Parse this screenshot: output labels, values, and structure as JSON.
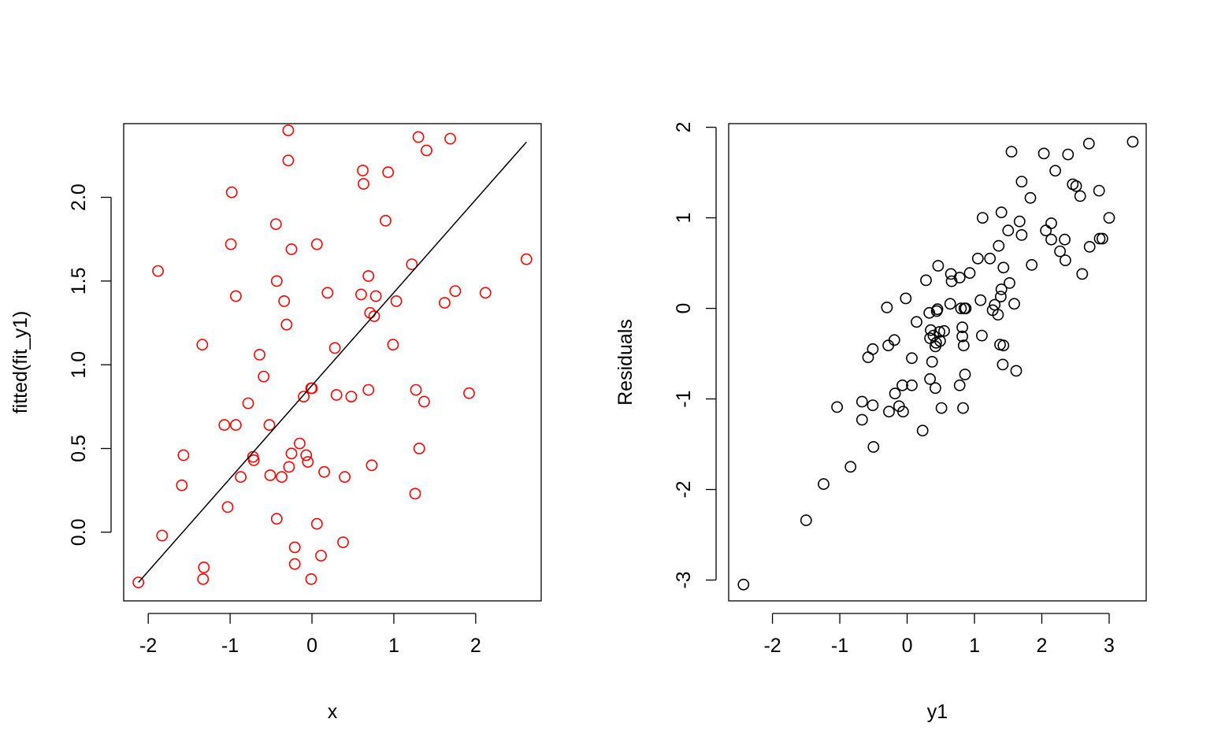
{
  "chart_data": [
    {
      "type": "scatter",
      "xlabel": "x",
      "ylabel": "fitted(fit_y1)",
      "xlim": [
        -2.3,
        2.8
      ],
      "ylim": [
        -0.41,
        2.44
      ],
      "x_ticks": [
        "-2",
        "-1",
        "0",
        "1",
        "2"
      ],
      "y_ticks": [
        "0.0",
        "0.5",
        "1.0",
        "1.5",
        "2.0"
      ],
      "point_color": "#FF0000",
      "line_color": "#000000",
      "fit_line": {
        "x": [
          -2.12,
          2.62
        ],
        "y": [
          -0.3,
          2.33
        ]
      },
      "points": [
        [
          -2.12,
          -0.3
        ],
        [
          -1.83,
          -0.02
        ],
        [
          -1.32,
          -0.21
        ],
        [
          -1.33,
          -0.28
        ],
        [
          -1.88,
          1.56
        ],
        [
          -1.34,
          1.12
        ],
        [
          -1.57,
          0.46
        ],
        [
          -1.59,
          0.28
        ],
        [
          -1.07,
          0.64
        ],
        [
          -1.03,
          0.15
        ],
        [
          -0.98,
          2.03
        ],
        [
          -0.99,
          1.72
        ],
        [
          -0.93,
          1.41
        ],
        [
          -0.93,
          0.64
        ],
        [
          -0.87,
          0.33
        ],
        [
          -0.78,
          0.77
        ],
        [
          -0.72,
          0.45
        ],
        [
          -0.71,
          0.43
        ],
        [
          -0.64,
          1.06
        ],
        [
          -0.59,
          0.93
        ],
        [
          -0.52,
          0.64
        ],
        [
          -0.51,
          0.34
        ],
        [
          -0.44,
          1.84
        ],
        [
          -0.43,
          1.5
        ],
        [
          -0.43,
          0.08
        ],
        [
          -0.37,
          0.33
        ],
        [
          -0.34,
          1.38
        ],
        [
          -0.31,
          1.24
        ],
        [
          -0.29,
          2.4
        ],
        [
          -0.29,
          2.22
        ],
        [
          -0.28,
          0.39
        ],
        [
          -0.25,
          1.69
        ],
        [
          -0.25,
          0.47
        ],
        [
          -0.21,
          -0.09
        ],
        [
          -0.21,
          -0.19
        ],
        [
          -0.15,
          0.53
        ],
        [
          -0.1,
          0.81
        ],
        [
          -0.07,
          0.46
        ],
        [
          -0.05,
          0.42
        ],
        [
          -0.01,
          0.86
        ],
        [
          0.0,
          0.86
        ],
        [
          -0.01,
          -0.28
        ],
        [
          0.06,
          1.72
        ],
        [
          0.06,
          0.05
        ],
        [
          0.11,
          -0.14
        ],
        [
          0.15,
          0.36
        ],
        [
          0.19,
          1.43
        ],
        [
          0.28,
          1.1
        ],
        [
          0.3,
          0.82
        ],
        [
          0.38,
          -0.06
        ],
        [
          0.4,
          0.33
        ],
        [
          0.48,
          0.81
        ],
        [
          0.6,
          1.42
        ],
        [
          0.62,
          2.16
        ],
        [
          0.63,
          2.08
        ],
        [
          0.69,
          0.85
        ],
        [
          0.69,
          1.53
        ],
        [
          0.71,
          1.31
        ],
        [
          0.73,
          0.4
        ],
        [
          0.76,
          1.29
        ],
        [
          0.78,
          1.41
        ],
        [
          0.9,
          1.86
        ],
        [
          0.93,
          2.15
        ],
        [
          0.99,
          1.12
        ],
        [
          1.03,
          1.38
        ],
        [
          1.22,
          1.6
        ],
        [
          1.26,
          0.23
        ],
        [
          1.27,
          0.85
        ],
        [
          1.3,
          2.36
        ],
        [
          1.31,
          0.5
        ],
        [
          1.37,
          0.78
        ],
        [
          1.4,
          2.28
        ],
        [
          1.62,
          1.37
        ],
        [
          1.69,
          2.35
        ],
        [
          1.75,
          1.44
        ],
        [
          1.92,
          0.83
        ],
        [
          2.12,
          1.43
        ],
        [
          2.62,
          1.63
        ]
      ]
    },
    {
      "type": "scatter",
      "xlabel": "y1",
      "ylabel": "Residuals",
      "xlim": [
        -2.65,
        3.55
      ],
      "ylim": [
        -3.23,
        2.04
      ],
      "x_ticks": [
        "-2",
        "-1",
        "0",
        "1",
        "2",
        "3"
      ],
      "y_ticks": [
        "-3",
        "-2",
        "-1",
        "0",
        "1",
        "2"
      ],
      "point_color": "#000000",
      "points": [
        [
          -2.43,
          -3.05
        ],
        [
          -1.5,
          -2.34
        ],
        [
          -1.24,
          -1.94
        ],
        [
          -0.84,
          -1.75
        ],
        [
          -1.04,
          -1.09
        ],
        [
          -0.67,
          -1.03
        ],
        [
          -0.67,
          -1.23
        ],
        [
          -0.51,
          -1.07
        ],
        [
          -0.5,
          -1.53
        ],
        [
          -0.58,
          -0.54
        ],
        [
          -0.51,
          -0.45
        ],
        [
          -0.3,
          0.01
        ],
        [
          -0.28,
          -0.41
        ],
        [
          -0.27,
          -1.14
        ],
        [
          -0.19,
          -0.35
        ],
        [
          -0.18,
          -0.94
        ],
        [
          -0.12,
          -1.08
        ],
        [
          -0.07,
          -0.85
        ],
        [
          -0.06,
          -1.14
        ],
        [
          -0.02,
          0.11
        ],
        [
          0.07,
          -0.55
        ],
        [
          0.07,
          -0.85
        ],
        [
          0.14,
          -0.15
        ],
        [
          0.23,
          -1.35
        ],
        [
          0.28,
          0.31
        ],
        [
          0.33,
          -0.05
        ],
        [
          0.34,
          -0.78
        ],
        [
          0.35,
          -0.24
        ],
        [
          0.34,
          -0.33
        ],
        [
          0.37,
          -0.59
        ],
        [
          0.39,
          -0.3
        ],
        [
          0.42,
          -0.88
        ],
        [
          0.42,
          -0.42
        ],
        [
          0.43,
          -0.38
        ],
        [
          0.44,
          -0.03
        ],
        [
          0.45,
          -0.01
        ],
        [
          0.46,
          0.47
        ],
        [
          0.48,
          -0.26
        ],
        [
          0.49,
          -0.36
        ],
        [
          0.51,
          -1.1
        ],
        [
          0.55,
          -0.25
        ],
        [
          0.64,
          0.05
        ],
        [
          0.65,
          0.38
        ],
        [
          0.66,
          0.3
        ],
        [
          0.78,
          0.34
        ],
        [
          0.78,
          -0.85
        ],
        [
          0.8,
          0.0
        ],
        [
          0.82,
          -0.31
        ],
        [
          0.82,
          -0.21
        ],
        [
          0.83,
          -1.1
        ],
        [
          0.84,
          -0.41
        ],
        [
          0.85,
          0.0
        ],
        [
          0.86,
          -0.73
        ],
        [
          0.87,
          0.0
        ],
        [
          0.93,
          0.39
        ],
        [
          1.05,
          0.55
        ],
        [
          1.09,
          0.09
        ],
        [
          1.11,
          -0.3
        ],
        [
          1.12,
          1.0
        ],
        [
          1.23,
          0.55
        ],
        [
          1.27,
          -0.02
        ],
        [
          1.3,
          0.04
        ],
        [
          1.35,
          -0.07
        ],
        [
          1.36,
          0.69
        ],
        [
          1.38,
          -0.4
        ],
        [
          1.39,
          0.13
        ],
        [
          1.4,
          1.06
        ],
        [
          1.4,
          0.21
        ],
        [
          1.42,
          -0.62
        ],
        [
          1.43,
          -0.41
        ],
        [
          1.43,
          0.45
        ],
        [
          1.5,
          0.86
        ],
        [
          1.52,
          0.28
        ],
        [
          1.55,
          1.73
        ],
        [
          1.59,
          0.05
        ],
        [
          1.62,
          -0.69
        ],
        [
          1.67,
          0.96
        ],
        [
          1.7,
          1.4
        ],
        [
          1.7,
          0.81
        ],
        [
          1.83,
          1.22
        ],
        [
          1.85,
          0.48
        ],
        [
          2.03,
          1.71
        ],
        [
          2.06,
          0.86
        ],
        [
          2.14,
          0.94
        ],
        [
          2.14,
          0.76
        ],
        [
          2.2,
          1.52
        ],
        [
          2.27,
          0.63
        ],
        [
          2.34,
          0.76
        ],
        [
          2.35,
          0.53
        ],
        [
          2.39,
          1.7
        ],
        [
          2.46,
          1.37
        ],
        [
          2.51,
          1.35
        ],
        [
          2.57,
          1.24
        ],
        [
          2.6,
          0.38
        ],
        [
          2.7,
          1.82
        ],
        [
          2.71,
          0.68
        ],
        [
          2.85,
          1.3
        ],
        [
          2.86,
          0.77
        ],
        [
          2.9,
          0.77
        ],
        [
          3.0,
          1.0
        ],
        [
          3.35,
          1.84
        ]
      ]
    }
  ]
}
